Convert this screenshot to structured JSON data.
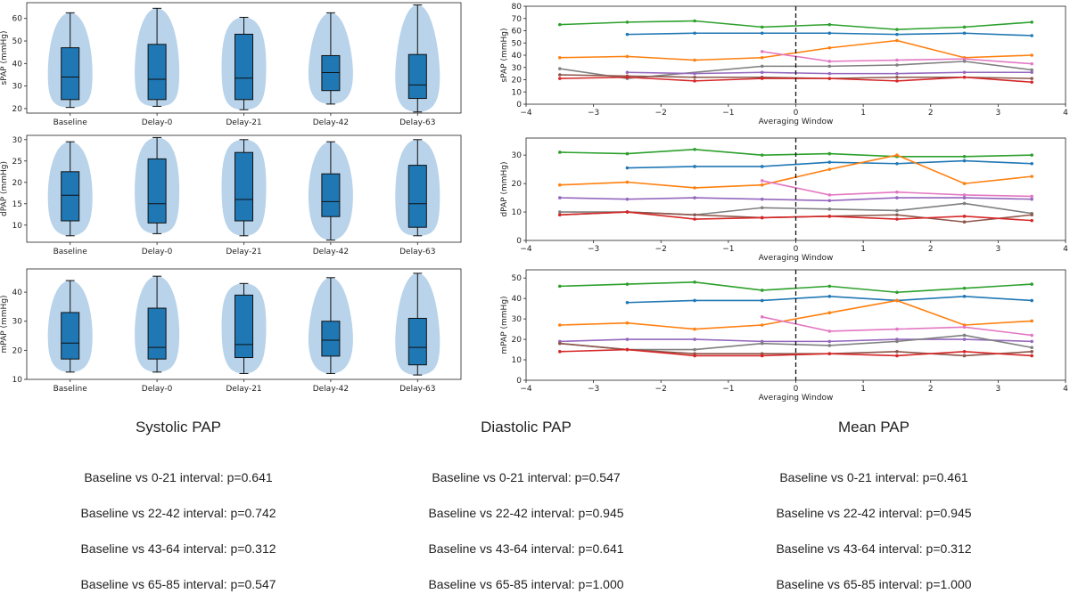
{
  "violin_panels": [
    {
      "ylabel": "sPAP (mmHg)",
      "ylim": [
        18,
        67
      ],
      "yticks": [
        20,
        30,
        40,
        50,
        60
      ],
      "groups": [
        {
          "label": "Baseline",
          "min": 20.5,
          "q1": 24,
          "median": 34,
          "q3": 47,
          "max": 62.5
        },
        {
          "label": "Delay-0",
          "min": 21,
          "q1": 24,
          "median": 33,
          "q3": 48.5,
          "max": 64.5
        },
        {
          "label": "Delay-21",
          "min": 19.5,
          "q1": 24,
          "median": 33.5,
          "q3": 53,
          "max": 60.5
        },
        {
          "label": "Delay-42",
          "min": 22,
          "q1": 28,
          "median": 36,
          "q3": 43.5,
          "max": 62.5
        },
        {
          "label": "Delay-63",
          "min": 18.5,
          "q1": 24.5,
          "median": 30.5,
          "q3": 44,
          "max": 66
        }
      ]
    },
    {
      "ylabel": "dPAP (mmHg)",
      "ylim": [
        6,
        31
      ],
      "yticks": [
        10,
        15,
        20,
        25,
        30
      ],
      "groups": [
        {
          "label": "Baseline",
          "min": 7.5,
          "q1": 11,
          "median": 17,
          "q3": 22.5,
          "max": 29.5
        },
        {
          "label": "Delay-0",
          "min": 8,
          "q1": 10.5,
          "median": 15,
          "q3": 25.5,
          "max": 30.5
        },
        {
          "label": "Delay-21",
          "min": 7.5,
          "q1": 11,
          "median": 16,
          "q3": 27,
          "max": 30
        },
        {
          "label": "Delay-42",
          "min": 6.5,
          "q1": 12,
          "median": 15.5,
          "q3": 22,
          "max": 29.5
        },
        {
          "label": "Delay-63",
          "min": 7.5,
          "q1": 9.5,
          "median": 15,
          "q3": 24,
          "max": 30
        }
      ]
    },
    {
      "ylabel": "mPAP (mmHg)",
      "ylim": [
        10,
        48
      ],
      "yticks": [
        10,
        20,
        30,
        40
      ],
      "groups": [
        {
          "label": "Baseline",
          "min": 12.5,
          "q1": 17,
          "median": 22.5,
          "q3": 33,
          "max": 44
        },
        {
          "label": "Delay-0",
          "min": 12.5,
          "q1": 17,
          "median": 21,
          "q3": 34.5,
          "max": 45.5
        },
        {
          "label": "Delay-21",
          "min": 12,
          "q1": 17.5,
          "median": 22,
          "q3": 39,
          "max": 43
        },
        {
          "label": "Delay-42",
          "min": 12,
          "q1": 18,
          "median": 23.5,
          "q3": 30,
          "max": 45
        },
        {
          "label": "Delay-63",
          "min": 11.5,
          "q1": 15,
          "median": 21,
          "q3": 31,
          "max": 46.5
        }
      ]
    }
  ],
  "line_panels": [
    {
      "ylabel": "sPAP (mmHg)",
      "xlabel": "Averaging Window",
      "xlim": [
        -4,
        4
      ],
      "ylim": [
        0,
        80
      ],
      "xticks": [
        -4,
        -3,
        -2,
        -1,
        0,
        1,
        2,
        3,
        4
      ],
      "yticks": [
        0,
        10,
        20,
        30,
        40,
        50,
        60,
        70,
        80
      ],
      "vline": 0,
      "series": [
        {
          "color": "#2ca02c",
          "x": [
            -3.5,
            -2.5,
            -1.5,
            -0.5,
            0.5,
            1.5,
            2.5,
            3.5
          ],
          "y": [
            65,
            67,
            68,
            63,
            65,
            61,
            63,
            67
          ]
        },
        {
          "color": "#1f77b4",
          "x": [
            -2.5,
            -1.5,
            -0.5,
            0.5,
            1.5,
            2.5,
            3.5
          ],
          "y": [
            57,
            58,
            58,
            58,
            57,
            58,
            56
          ]
        },
        {
          "color": "#ff7f0e",
          "x": [
            -3.5,
            -2.5,
            -1.5,
            -0.5,
            0.5,
            1.5,
            2.5,
            3.5
          ],
          "y": [
            38,
            39,
            36,
            38,
            46,
            52,
            38,
            40
          ]
        },
        {
          "color": "#e377c2",
          "x": [
            -0.5,
            0.5,
            1.5,
            2.5,
            3.5
          ],
          "y": [
            43,
            35,
            36,
            37,
            33
          ]
        },
        {
          "color": "#7f7f7f",
          "x": [
            -3.5,
            -2.5,
            -0.5,
            0.5,
            1.5,
            2.5,
            3.5
          ],
          "y": [
            29,
            21,
            31,
            31,
            32,
            35,
            28
          ]
        },
        {
          "color": "#9467bd",
          "x": [
            -2.5,
            -1.5,
            -0.5,
            0.5,
            1.5,
            2.5,
            3.5
          ],
          "y": [
            26,
            25,
            26,
            25,
            25,
            26,
            26
          ]
        },
        {
          "color": "#8c564b",
          "x": [
            -3.5,
            -2.5,
            -1.5,
            -0.5,
            0.5,
            1.5,
            2.5,
            3.5
          ],
          "y": [
            24,
            23,
            22,
            22,
            21,
            22,
            22,
            21
          ]
        },
        {
          "color": "#d62728",
          "x": [
            -3.5,
            -2.5,
            -1.5,
            -0.5,
            0.5,
            1.5,
            2.5,
            3.5
          ],
          "y": [
            21,
            22,
            19,
            21,
            21,
            19,
            22,
            18
          ]
        }
      ]
    },
    {
      "ylabel": "dPAP (mmHg)",
      "xlabel": "Averaging Window",
      "xlim": [
        -4,
        4
      ],
      "ylim": [
        0,
        36
      ],
      "xticks": [
        -4,
        -3,
        -2,
        -1,
        0,
        1,
        2,
        3,
        4
      ],
      "yticks": [
        0,
        10,
        20,
        30
      ],
      "vline": 0,
      "series": [
        {
          "color": "#2ca02c",
          "x": [
            -3.5,
            -2.5,
            -1.5,
            -0.5,
            0.5,
            1.5,
            2.5,
            3.5
          ],
          "y": [
            31,
            30.5,
            32,
            30,
            30.5,
            29.5,
            29.5,
            30
          ]
        },
        {
          "color": "#1f77b4",
          "x": [
            -2.5,
            -1.5,
            -0.5,
            0.5,
            1.5,
            2.5,
            3.5
          ],
          "y": [
            25.5,
            26,
            26,
            27.5,
            27,
            28,
            27
          ]
        },
        {
          "color": "#ff7f0e",
          "x": [
            -3.5,
            -2.5,
            -1.5,
            -0.5,
            0.5,
            1.5,
            2.5,
            3.5
          ],
          "y": [
            19.5,
            20.5,
            18.5,
            19.5,
            25,
            30,
            20,
            22.5
          ]
        },
        {
          "color": "#e377c2",
          "x": [
            -0.5,
            0.5,
            1.5,
            2.5,
            3.5
          ],
          "y": [
            21,
            16,
            17,
            16,
            15.5
          ]
        },
        {
          "color": "#9467bd",
          "x": [
            -3.5,
            -2.5,
            -1.5,
            -0.5,
            0.5,
            1.5,
            2.5,
            3.5
          ],
          "y": [
            15,
            14.5,
            15,
            14.5,
            14,
            15,
            15,
            14.5
          ]
        },
        {
          "color": "#7f7f7f",
          "x": [
            -3.5,
            -2.5,
            -1.5,
            -0.5,
            0.5,
            1.5,
            2.5,
            3.5
          ],
          "y": [
            10,
            10,
            9,
            11.5,
            11,
            10.5,
            13,
            9.5
          ]
        },
        {
          "color": "#8c564b",
          "x": [
            -3.5,
            -2.5,
            -1.5,
            -0.5,
            0.5,
            1.5,
            2.5,
            3.5
          ],
          "y": [
            9,
            10,
            9,
            8,
            8.5,
            9,
            6.5,
            9
          ]
        },
        {
          "color": "#d62728",
          "x": [
            -3.5,
            -2.5,
            -1.5,
            -0.5,
            0.5,
            1.5,
            2.5,
            3.5
          ],
          "y": [
            9,
            10,
            7.5,
            8,
            8.5,
            7.5,
            8.5,
            7
          ]
        }
      ]
    },
    {
      "ylabel": "mPAP (mmHg)",
      "xlabel": "Averaging Window",
      "xlim": [
        -4,
        4
      ],
      "ylim": [
        0,
        54
      ],
      "xticks": [
        -4,
        -3,
        -2,
        -1,
        0,
        1,
        2,
        3,
        4
      ],
      "yticks": [
        0,
        10,
        20,
        30,
        40,
        50
      ],
      "vline": 0,
      "series": [
        {
          "color": "#2ca02c",
          "x": [
            -3.5,
            -2.5,
            -1.5,
            -0.5,
            0.5,
            1.5,
            2.5,
            3.5
          ],
          "y": [
            46,
            47,
            48,
            44,
            46,
            43,
            45,
            47
          ]
        },
        {
          "color": "#1f77b4",
          "x": [
            -2.5,
            -1.5,
            -0.5,
            0.5,
            1.5,
            2.5,
            3.5
          ],
          "y": [
            38,
            39,
            39,
            41,
            39,
            41,
            39
          ]
        },
        {
          "color": "#ff7f0e",
          "x": [
            -3.5,
            -2.5,
            -1.5,
            -0.5,
            0.5,
            1.5,
            2.5,
            3.5
          ],
          "y": [
            27,
            28,
            25,
            27,
            33,
            39,
            27,
            29
          ]
        },
        {
          "color": "#e377c2",
          "x": [
            -0.5,
            0.5,
            1.5,
            2.5,
            3.5
          ],
          "y": [
            31,
            24,
            25,
            26,
            22
          ]
        },
        {
          "color": "#9467bd",
          "x": [
            -3.5,
            -2.5,
            -1.5,
            -0.5,
            0.5,
            1.5,
            2.5,
            3.5
          ],
          "y": [
            19,
            20,
            20,
            19,
            19,
            20,
            20,
            19
          ]
        },
        {
          "color": "#7f7f7f",
          "x": [
            -3.5,
            -2.5,
            -1.5,
            -0.5,
            0.5,
            1.5,
            2.5,
            3.5
          ],
          "y": [
            18,
            15,
            15,
            18,
            17,
            19,
            22,
            16
          ]
        },
        {
          "color": "#8c564b",
          "x": [
            -3.5,
            -2.5,
            -1.5,
            -0.5,
            0.5,
            1.5,
            2.5,
            3.5
          ],
          "y": [
            18,
            15,
            13,
            13,
            13,
            14,
            12,
            14
          ]
        },
        {
          "color": "#d62728",
          "x": [
            -3.5,
            -2.5,
            -1.5,
            -0.5,
            0.5,
            1.5,
            2.5,
            3.5
          ],
          "y": [
            14,
            15,
            12,
            12,
            13,
            12,
            14,
            12
          ]
        }
      ]
    }
  ],
  "stats": [
    {
      "title": "Systolic PAP",
      "rows": [
        "Baseline vs 0-21 interval: p=0.641",
        "Baseline vs 22-42 interval: p=0.742",
        "Baseline vs 43-64 interval: p=0.312",
        "Baseline vs 65-85 interval: p=0.547"
      ]
    },
    {
      "title": "Diastolic PAP",
      "rows": [
        "Baseline vs 0-21 interval: p=0.547",
        "Baseline vs 22-42 interval: p=0.945",
        "Baseline vs 43-64 interval: p=0.641",
        "Baseline vs 65-85 interval: p=1.000"
      ]
    },
    {
      "title": "Mean PAP",
      "rows": [
        "Baseline vs 0-21 interval: p=0.461",
        "Baseline vs 22-42 interval: p=0.945",
        "Baseline vs 43-64 interval: p=0.312",
        "Baseline vs 65-85 interval: p=1.000"
      ]
    }
  ]
}
